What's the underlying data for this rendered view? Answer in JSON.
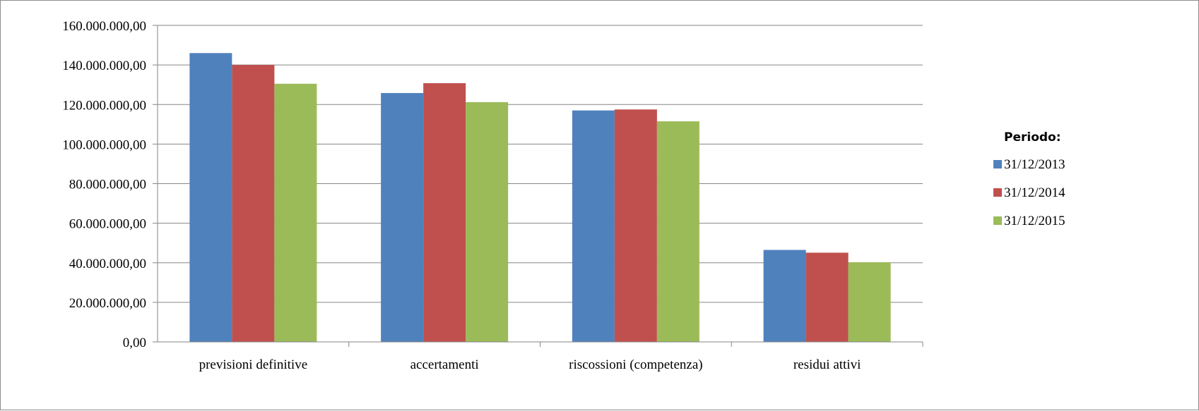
{
  "chart_data": {
    "type": "bar",
    "title": "",
    "xlabel": "",
    "ylabel": "",
    "categories": [
      "previsioni definitive",
      "accertamenti",
      "riscossioni (competenza)",
      "residui attivi"
    ],
    "series": [
      {
        "name": "31/12/2013",
        "color": "#4f81bd",
        "values": [
          146000000,
          125800000,
          117000000,
          46500000
        ]
      },
      {
        "name": "31/12/2014",
        "color": "#c0504d",
        "values": [
          140000000,
          130800000,
          117500000,
          45100000
        ]
      },
      {
        "name": "31/12/2015",
        "color": "#9bbb59",
        "values": [
          130500000,
          121200000,
          111500000,
          40300000
        ]
      }
    ],
    "ylim": [
      0,
      160000000
    ],
    "yticks": [
      0,
      20000000,
      40000000,
      60000000,
      80000000,
      100000000,
      120000000,
      140000000,
      160000000
    ],
    "ytick_labels": [
      "0,00",
      "20.000.000,00",
      "40.000.000,00",
      "60.000.000,00",
      "80.000.000,00",
      "100.000.000,00",
      "120.000.000,00",
      "140.000.000,00",
      "160.000.000,00"
    ],
    "grid": true,
    "legend": {
      "title": "Periodo:",
      "position": "right"
    }
  }
}
